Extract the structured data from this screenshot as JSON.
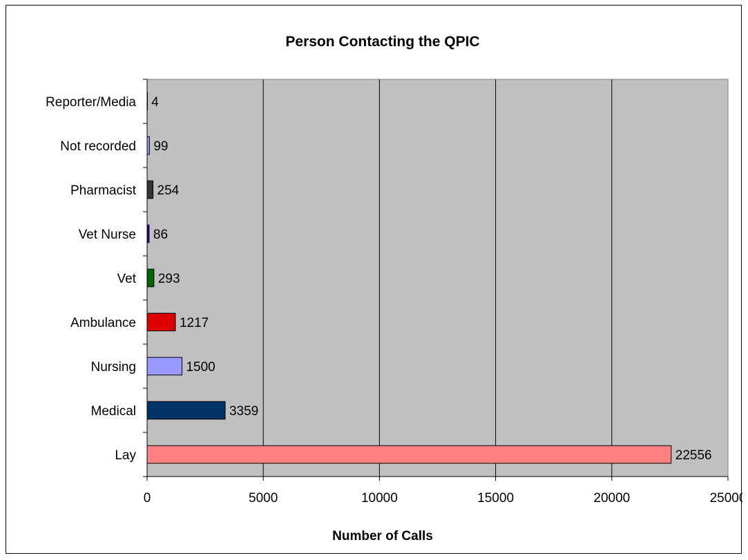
{
  "chart_data": {
    "type": "bar",
    "orientation": "horizontal",
    "title": "Person Contacting the QPIC",
    "xlabel": "Number of Calls",
    "ylabel": "",
    "xlim": [
      0,
      25000
    ],
    "x_ticks": [
      0,
      5000,
      10000,
      15000,
      20000,
      25000
    ],
    "grid": "vertical",
    "legend": "none",
    "plot_background": "#c0c0c0",
    "categories": [
      "Lay",
      "Medical",
      "Nursing",
      "Ambulance",
      "Vet",
      "Vet Nurse",
      "Pharmacist",
      "Not recorded",
      "Reporter/Media"
    ],
    "values": [
      22556,
      3359,
      1500,
      1217,
      293,
      86,
      254,
      99,
      4
    ],
    "bar_colors": [
      "#ff8080",
      "#003366",
      "#9999ff",
      "#dd0000",
      "#006600",
      "#330099",
      "#333333",
      "#9999ff",
      "#ffffff"
    ]
  }
}
